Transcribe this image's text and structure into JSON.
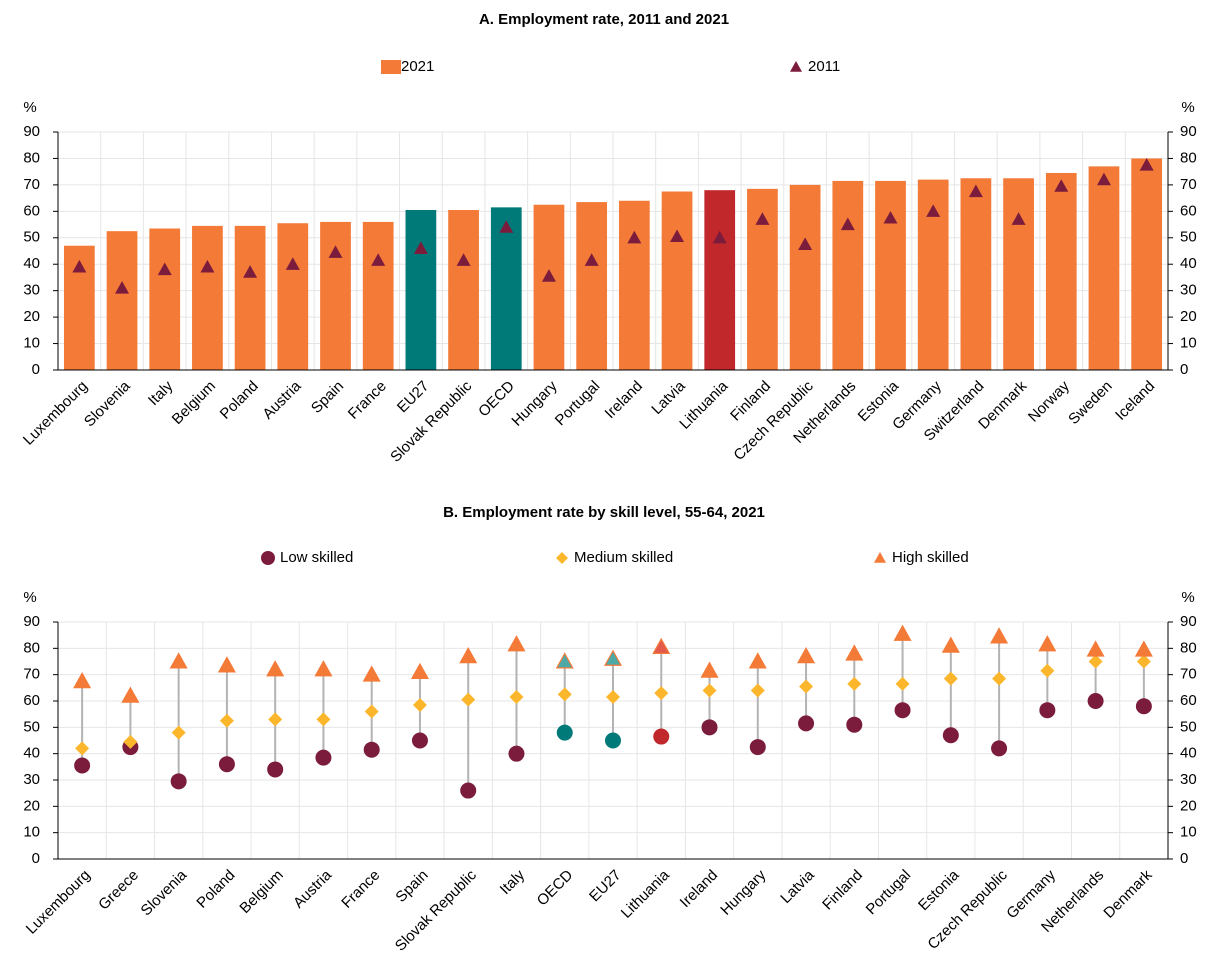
{
  "chart_data": [
    {
      "type": "bar",
      "title": "A. Employment rate, 2011 and 2021",
      "y_unit": "%",
      "categories": [
        "Luxembourg",
        "Slovenia",
        "Italy",
        "Belgium",
        "Poland",
        "Austria",
        "Spain",
        "France",
        "EU27",
        "Slovak Republic",
        "OECD",
        "Hungary",
        "Portugal",
        "Ireland",
        "Latvia",
        "Lithuania",
        "Finland",
        "Czech Republic",
        "Netherlands",
        "Estonia",
        "Germany",
        "Switzerland",
        "Denmark",
        "Norway",
        "Sweden",
        "Iceland"
      ],
      "series": [
        {
          "name": "2021",
          "marker": "bar",
          "color": "#f47a38",
          "colors": [
            "#f47a38",
            "#f47a38",
            "#f47a38",
            "#f47a38",
            "#f47a38",
            "#f47a38",
            "#f47a38",
            "#f47a38",
            "#007a78",
            "#f47a38",
            "#007a78",
            "#f47a38",
            "#f47a38",
            "#f47a38",
            "#f47a38",
            "#c0282c",
            "#f47a38",
            "#f47a38",
            "#f47a38",
            "#f47a38",
            "#f47a38",
            "#f47a38",
            "#f47a38",
            "#f47a38",
            "#f47a38",
            "#f47a38"
          ],
          "values": [
            47,
            52.5,
            53.5,
            54.5,
            54.5,
            55.5,
            56,
            56,
            60.5,
            60.5,
            61.5,
            62.5,
            63.5,
            64,
            67.5,
            68,
            68.5,
            70,
            71.5,
            71.5,
            72,
            72.5,
            72.5,
            74.5,
            77,
            80
          ]
        },
        {
          "name": "2011",
          "marker": "triangle",
          "color": "#7b1c3c",
          "values": [
            39,
            31,
            38,
            39,
            37,
            40,
            44.5,
            41.5,
            46,
            41.5,
            54,
            35.5,
            41.5,
            50,
            50.5,
            50,
            57,
            47.5,
            55,
            57.5,
            60,
            67.5,
            57,
            69.5,
            72,
            77.5
          ]
        }
      ],
      "ylim": [
        0,
        90
      ],
      "yticks": [
        0,
        10,
        20,
        30,
        40,
        50,
        60,
        70,
        80,
        90
      ],
      "grid": true
    },
    {
      "type": "dot",
      "title": "B. Employment rate by skill level, 55-64, 2021",
      "y_unit": "%",
      "categories": [
        "Luxembourg",
        "Greece",
        "Slovenia",
        "Poland",
        "Belgium",
        "Austria",
        "France",
        "Spain",
        "Slovak Republic",
        "Italy",
        "OECD",
        "EU27",
        "Lithuania",
        "Ireland",
        "Hungary",
        "Latvia",
        "Finland",
        "Portugal",
        "Estonia",
        "Czech Republic",
        "Germany",
        "Netherlands",
        "Denmark"
      ],
      "series": [
        {
          "name": "Low skilled",
          "marker": "circle",
          "color": "#7b1c3c",
          "colors": [
            "#7b1c3c",
            "#7b1c3c",
            "#7b1c3c",
            "#7b1c3c",
            "#7b1c3c",
            "#7b1c3c",
            "#7b1c3c",
            "#7b1c3c",
            "#7b1c3c",
            "#7b1c3c",
            "#007a78",
            "#007a78",
            "#c0282c",
            "#7b1c3c",
            "#7b1c3c",
            "#7b1c3c",
            "#7b1c3c",
            "#7b1c3c",
            "#7b1c3c",
            "#7b1c3c",
            "#7b1c3c",
            "#7b1c3c",
            "#7b1c3c"
          ],
          "values": [
            35.5,
            42.5,
            29.5,
            36,
            34,
            38.5,
            41.5,
            45,
            26,
            40,
            48,
            45,
            46.5,
            50,
            42.5,
            51.5,
            51,
            56.5,
            47,
            42,
            56.5,
            60,
            58
          ]
        },
        {
          "name": "Medium skilled",
          "marker": "diamond",
          "color": "#fbb62c",
          "values": [
            42,
            44.5,
            48,
            52.5,
            53,
            53,
            56,
            58.5,
            60.5,
            61.5,
            62.5,
            61.5,
            63,
            64,
            64,
            65.5,
            66.5,
            66.5,
            68.5,
            68.5,
            71.5,
            75,
            75
          ]
        },
        {
          "name": "High skilled",
          "marker": "triangle",
          "color": "#f47a38",
          "colors": [
            "#f47a38",
            "#f47a38",
            "#f47a38",
            "#f47a38",
            "#f47a38",
            "#f47a38",
            "#f47a38",
            "#f47a38",
            "#f47a38",
            "#f47a38",
            "#4fa9a6",
            "#4fa9a6",
            "#e35a4a",
            "#f47a38",
            "#f47a38",
            "#f47a38",
            "#f47a38",
            "#f47a38",
            "#f47a38",
            "#f47a38",
            "#f47a38",
            "#f47a38",
            "#f47a38"
          ],
          "values": [
            67.5,
            62,
            75,
            73.5,
            72,
            72,
            70,
            71,
            77,
            81.5,
            75,
            76,
            80.5,
            71.5,
            75,
            77,
            78,
            85.5,
            81,
            84.5,
            81.5,
            79.5,
            79.5
          ]
        }
      ],
      "ylim": [
        0,
        90
      ],
      "yticks": [
        0,
        10,
        20,
        30,
        40,
        50,
        60,
        70,
        80,
        90
      ],
      "grid": true
    }
  ]
}
